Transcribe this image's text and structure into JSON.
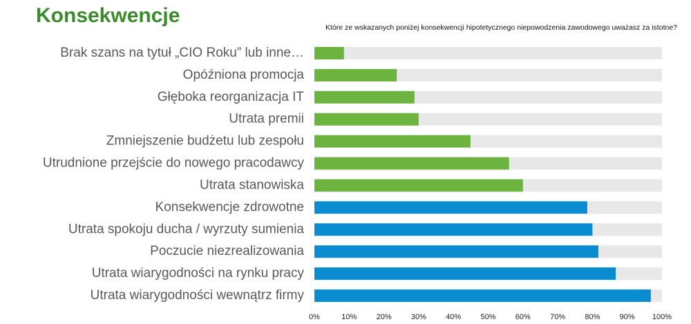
{
  "chart_data": {
    "type": "hbar",
    "title": "Konsekwencje",
    "subtitle": "Które ze wskazanych poniżej konsekwencji hipotetycznego niepowodzenia zawodowego uważasz za istotne?",
    "categories": [
      "Brak szans na tytuł „CIO Roku” lub inne…",
      "Opóźniona promocja",
      "Głęboka reorganizacja IT",
      "Utrata premii",
      "Zmniejszenie budżetu lub zespołu",
      "Utrudnione przejście do nowego pracodawcy",
      "Utrata stanowiska",
      "Konsekwencje zdrowotne",
      "Utrata spokoju ducha / wyrzuty sumienia",
      "Poczucie niezrealizowania",
      "Utrata wiarygodności na rynku pracy",
      "Utrata wiarygodności wewnątrz firmy"
    ],
    "values": [
      8.5,
      23.7,
      28.8,
      30,
      44.9,
      56,
      60,
      78.5,
      80,
      81.7,
      86.7,
      96.8
    ],
    "colors": [
      "#6db33f",
      "#6db33f",
      "#6db33f",
      "#6db33f",
      "#6db33f",
      "#6db33f",
      "#6db33f",
      "#0a8dd0",
      "#0a8dd0",
      "#0a8dd0",
      "#0a8dd0",
      "#0a8dd0"
    ],
    "xlim": [
      0,
      100
    ],
    "xticks": [
      {
        "value": 0,
        "label": "0%"
      },
      {
        "value": 10,
        "label": "10%"
      },
      {
        "value": 20,
        "label": "20%"
      },
      {
        "value": 30,
        "label": "30%"
      },
      {
        "value": 40,
        "label": "40%"
      },
      {
        "value": 50,
        "label": "50%"
      },
      {
        "value": 60,
        "label": "60%"
      },
      {
        "value": 70,
        "label": "70%"
      },
      {
        "value": 80,
        "label": "80%"
      },
      {
        "value": 90,
        "label": "90%"
      },
      {
        "value": 100,
        "label": "100%"
      }
    ]
  }
}
